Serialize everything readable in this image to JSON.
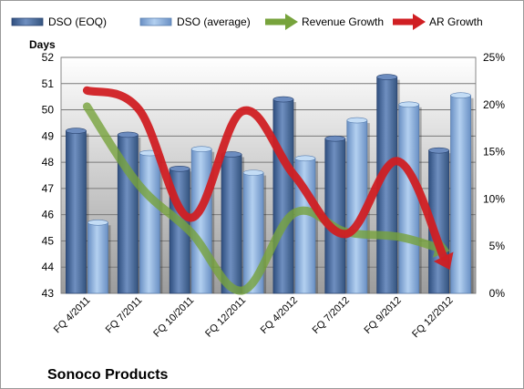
{
  "chart_data": {
    "type": "bar",
    "title": "Sonoco Products",
    "ylabel": "Days",
    "categories": [
      "FQ 4/2011",
      "FQ 7/2011",
      "FQ 10/2011",
      "FQ 12/2011",
      "FQ 4/2012",
      "FQ 7/2012",
      "FQ 9/2012",
      "FQ 12/2012"
    ],
    "ylim": [
      43,
      52
    ],
    "yticks": [
      "43",
      "44",
      "45",
      "46",
      "47",
      "48",
      "49",
      "50",
      "51",
      "52"
    ],
    "y2lim": [
      0,
      25
    ],
    "y2ticks": [
      "0%",
      "5%",
      "10%",
      "15%",
      "20%",
      "25%"
    ],
    "legend_position": "top",
    "grid": true,
    "series": [
      {
        "name": "DSO (EOQ)",
        "kind": "bar",
        "axis": "left",
        "color": "#4f6fa0",
        "values": [
          49.2,
          49.05,
          47.75,
          48.3,
          50.4,
          48.9,
          51.25,
          48.45
        ]
      },
      {
        "name": "DSO (average)",
        "kind": "bar",
        "axis": "left",
        "color": "#8db3e2",
        "values": [
          45.7,
          48.35,
          48.5,
          47.6,
          48.15,
          49.6,
          50.2,
          50.55
        ]
      },
      {
        "name": "Revenue Growth",
        "kind": "arrow-line",
        "axis": "right",
        "color": "#77a33c",
        "values": [
          19.8,
          11.5,
          6.5,
          0.3,
          8.5,
          6.5,
          6.0,
          4.5
        ]
      },
      {
        "name": "AR Growth",
        "kind": "arrow-line",
        "axis": "right",
        "color": "#d01f23",
        "values": [
          21.5,
          19.5,
          8.0,
          19.3,
          12.5,
          6.3,
          14.0,
          2.5
        ]
      }
    ]
  }
}
